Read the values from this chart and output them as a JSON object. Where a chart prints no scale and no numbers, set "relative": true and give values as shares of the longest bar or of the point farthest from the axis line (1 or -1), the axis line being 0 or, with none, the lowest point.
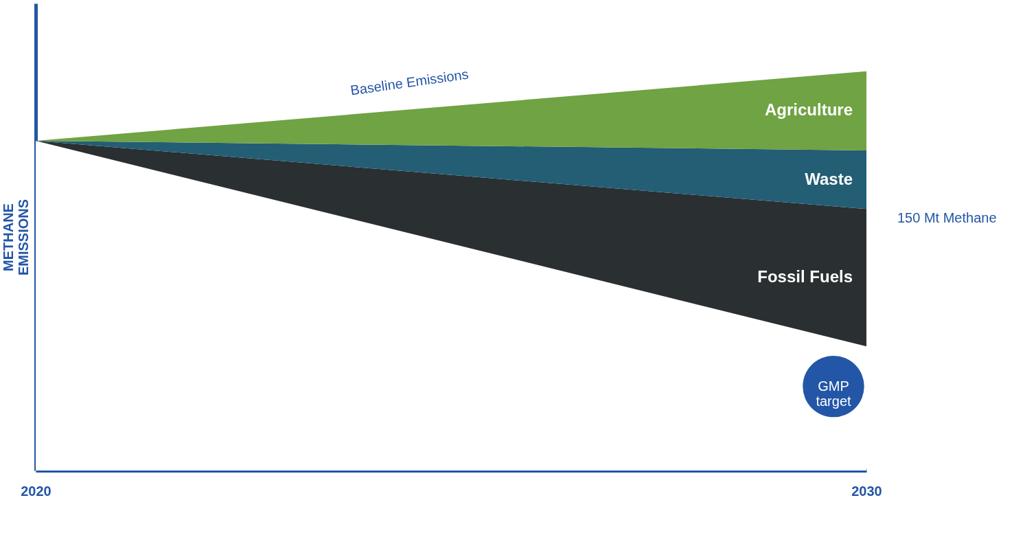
{
  "chart_data": {
    "type": "area",
    "relative": true,
    "stacked": true,
    "x": [
      2020,
      2030
    ],
    "xlim": [
      2020,
      2030
    ],
    "xticks": [
      2020,
      2030
    ],
    "ylabel": "METHANE EMISSIONS",
    "series": [
      {
        "color": "#ffffff",
        "values": [
          0.826,
          0.311
        ]
      },
      {
        "name": "Fossil Fuels",
        "color": "#2a2f32",
        "values": [
          0,
          0.344
        ]
      },
      {
        "name": "Waste",
        "color": "#235e75",
        "values": [
          0,
          0.147
        ]
      },
      {
        "name": "Agriculture",
        "color": "#70a343",
        "values": [
          0,
          0.198
        ]
      }
    ],
    "annotations": [
      "Baseline Emissions",
      "GMP target",
      "150 Mt Methane"
    ]
  }
}
